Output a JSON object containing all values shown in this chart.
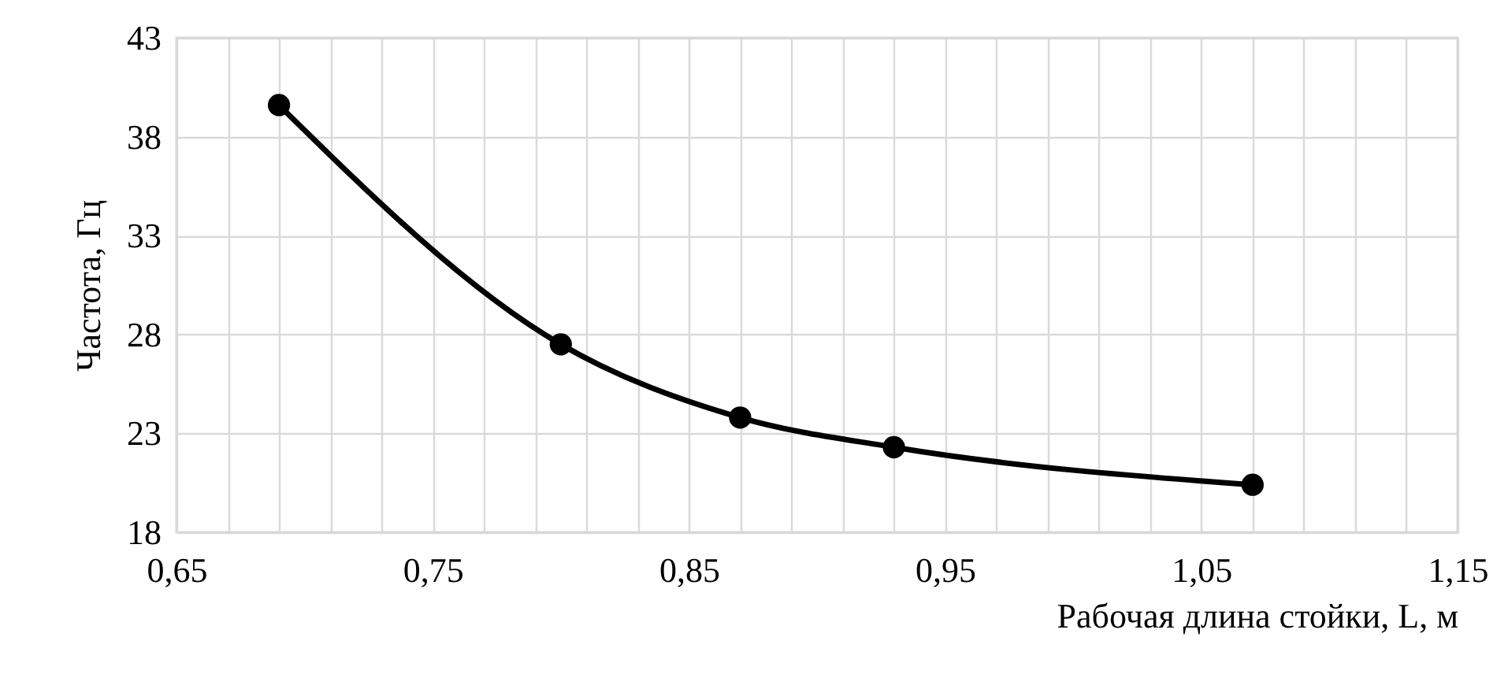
{
  "chart_data": {
    "type": "line",
    "xlabel": "Рабочая длина стойки, L, м",
    "ylabel": "Частота, Гц",
    "x": [
      0.69,
      0.8,
      0.87,
      0.93,
      1.07
    ],
    "series": [
      {
        "color": "#000000",
        "values": [
          39.6,
          27.5,
          23.8,
          22.3,
          20.4
        ]
      }
    ],
    "xlim": [
      0.65,
      1.15
    ],
    "xticks": [
      {
        "value": 0.65,
        "label": "0,65"
      },
      {
        "value": 0.67,
        "label": null
      },
      {
        "value": 0.69,
        "label": null
      },
      {
        "value": 0.71,
        "label": null
      },
      {
        "value": 0.73,
        "label": null
      },
      {
        "value": 0.75,
        "label": "0,75"
      },
      {
        "value": 0.77,
        "label": null
      },
      {
        "value": 0.79,
        "label": null
      },
      {
        "value": 0.81,
        "label": null
      },
      {
        "value": 0.83,
        "label": null
      },
      {
        "value": 0.85,
        "label": "0,85"
      },
      {
        "value": 0.87,
        "label": null
      },
      {
        "value": 0.89,
        "label": null
      },
      {
        "value": 0.91,
        "label": null
      },
      {
        "value": 0.93,
        "label": null
      },
      {
        "value": 0.95,
        "label": "0,95"
      },
      {
        "value": 0.97,
        "label": null
      },
      {
        "value": 0.99,
        "label": null
      },
      {
        "value": 1.01,
        "label": null
      },
      {
        "value": 1.03,
        "label": null
      },
      {
        "value": 1.05,
        "label": "1,05"
      },
      {
        "value": 1.07,
        "label": null
      },
      {
        "value": 1.09,
        "label": null
      },
      {
        "value": 1.11,
        "label": null
      },
      {
        "value": 1.13,
        "label": null
      },
      {
        "value": 1.15,
        "label": "1,15"
      }
    ],
    "ylim": [
      18,
      43
    ],
    "yticks": [
      18,
      23,
      28,
      33,
      38,
      43
    ],
    "grid": true,
    "marker": "circle",
    "line_style": "solid"
  }
}
